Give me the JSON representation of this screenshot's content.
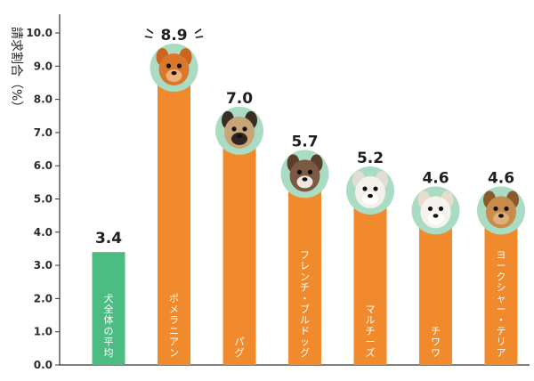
{
  "chart_data": {
    "type": "bar",
    "title": "",
    "xlabel": "",
    "ylabel": "請求割合（%）",
    "ylim": [
      0,
      10
    ],
    "yticks": [
      "0.0",
      "1.0",
      "2.0",
      "3.0",
      "4.0",
      "5.0",
      "6.0",
      "7.0",
      "8.0",
      "9.0",
      "10.0"
    ],
    "grid": false,
    "categories": [
      "犬全体の平均",
      "ポメラニアン",
      "パグ",
      "フレンチ・ブルドッグ",
      "マルチーズ",
      "チワワ",
      "ヨークシャー・テリア"
    ],
    "value_labels": [
      "3.4",
      "8.9",
      "7.0",
      "5.7",
      "5.2",
      "4.6",
      "4.6"
    ],
    "values": [
      3.4,
      8.9,
      7.0,
      5.7,
      5.2,
      4.6,
      4.6
    ],
    "bar_colors": [
      "#4cbc82",
      "#f08a2c",
      "#f08a2c",
      "#f08a2c",
      "#f08a2c",
      "#f08a2c",
      "#f08a2c"
    ],
    "photo_circle_color": "#a9dcc3",
    "dog_photo_icons": [
      "",
      "pomeranian-photo-icon",
      "pug-photo-icon",
      "french-bulldog-photo-icon",
      "maltese-photo-icon",
      "chihuahua-photo-icon",
      "yorkshire-terrier-photo-icon"
    ]
  }
}
